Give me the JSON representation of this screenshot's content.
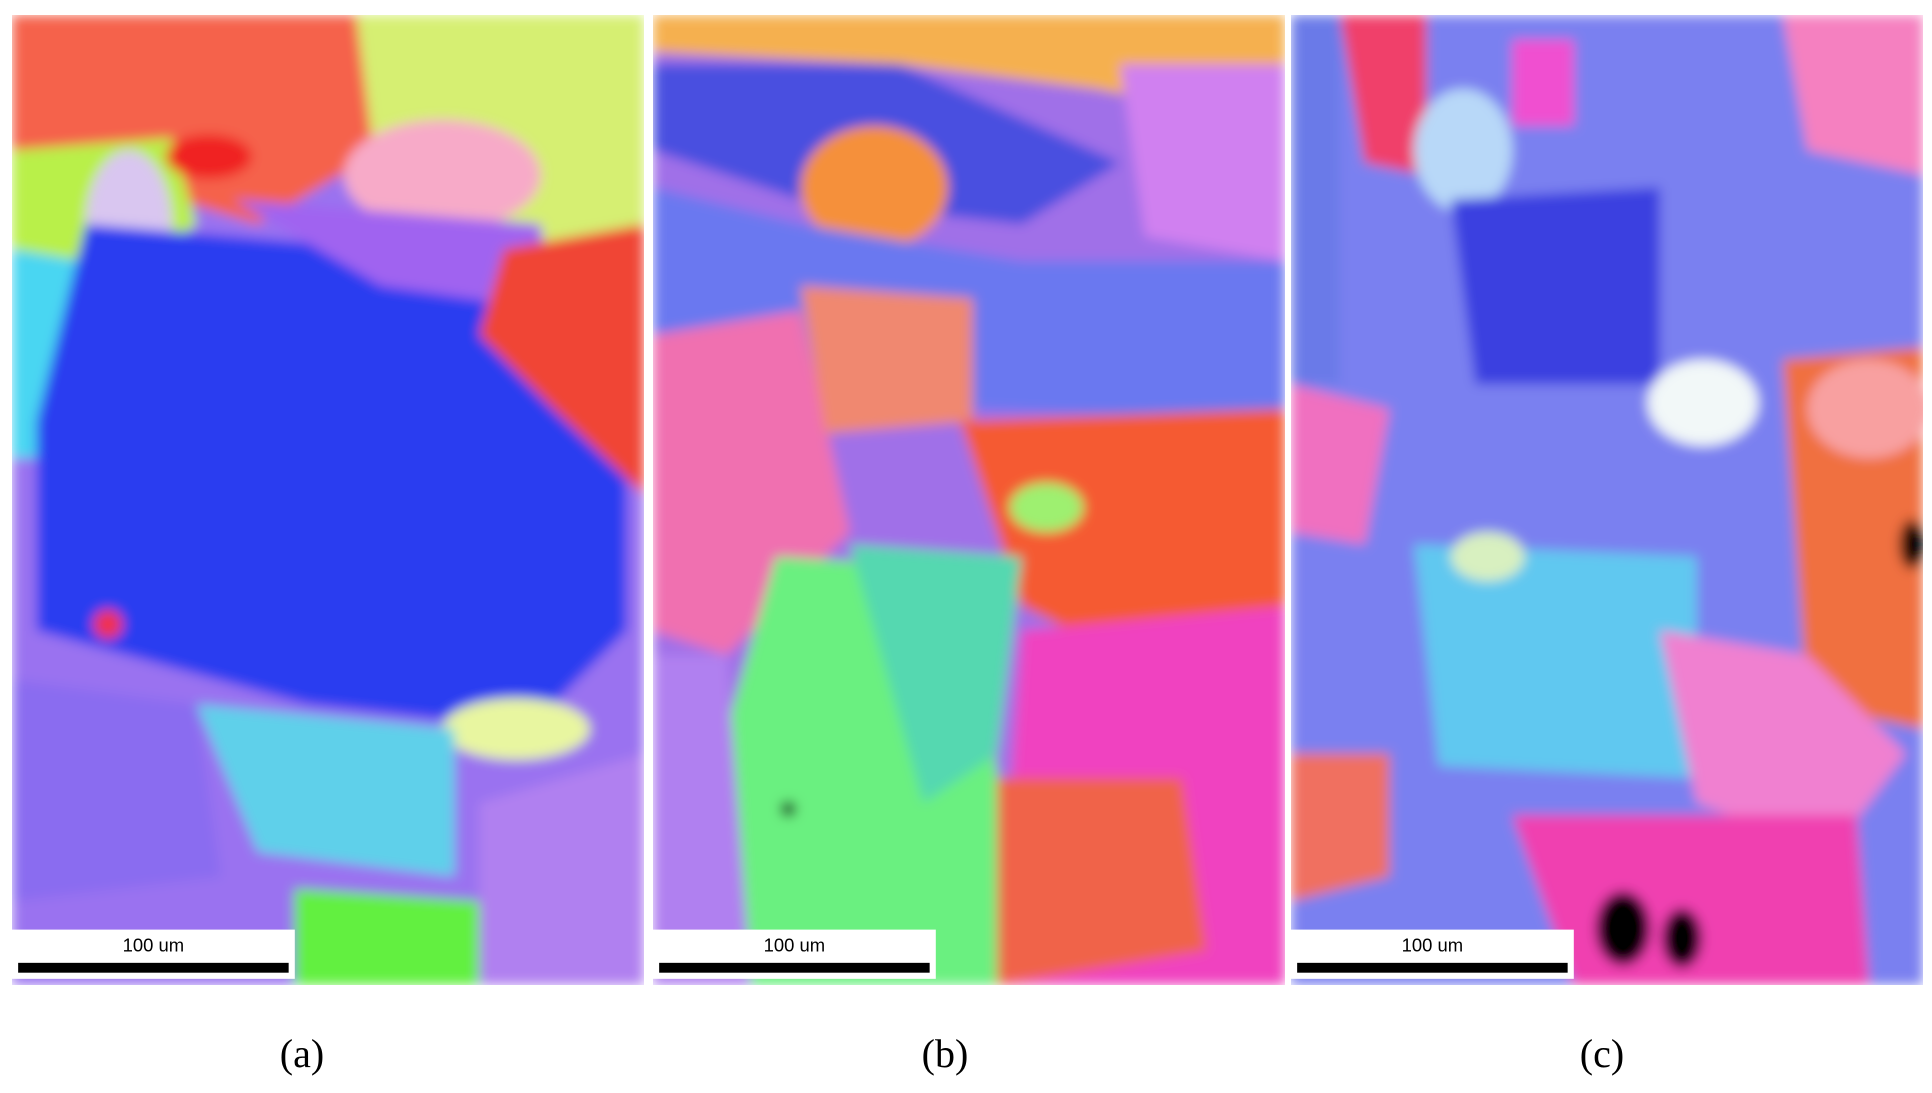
{
  "panels": [
    {
      "label": "(a)",
      "scale_bar": "100 um"
    },
    {
      "label": "(b)",
      "scale_bar": "100 um"
    },
    {
      "label": "(c)",
      "scale_bar": "100 um"
    }
  ]
}
